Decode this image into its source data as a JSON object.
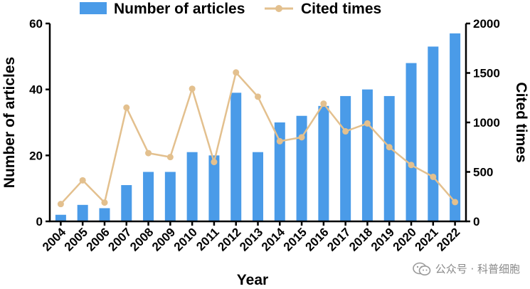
{
  "chart_data": {
    "type": "bar",
    "xlabel": "Year",
    "ylabel": "Number of articles",
    "y2label": "Cited times",
    "ylim": [
      0,
      60
    ],
    "y2lim": [
      0,
      2000
    ],
    "yticks": [
      "0",
      "20",
      "40",
      "60"
    ],
    "y2ticks": [
      "0",
      "500",
      "1000",
      "1500",
      "2000"
    ],
    "legend_placement": "top",
    "categories": [
      "2004",
      "2005",
      "2006",
      "2007",
      "2008",
      "2009",
      "2010",
      "2011",
      "2012",
      "2013",
      "2014",
      "2015",
      "2016",
      "2017",
      "2018",
      "2019",
      "2020",
      "2021",
      "2022"
    ],
    "series": [
      {
        "name": "Number of articles",
        "type": "bar",
        "axis": "left",
        "color": "#4a9be8",
        "values": [
          2,
          5,
          4,
          11,
          15,
          15,
          21,
          20,
          39,
          21,
          30,
          32,
          35,
          38,
          40,
          38,
          48,
          53,
          57
        ]
      },
      {
        "name": "Cited times",
        "type": "line",
        "axis": "right",
        "color": "#e3c08e",
        "values": [
          175,
          415,
          190,
          1150,
          690,
          650,
          1340,
          600,
          1505,
          1260,
          810,
          850,
          1190,
          910,
          990,
          750,
          570,
          450,
          195
        ]
      }
    ]
  },
  "watermark": "公众号 · 科普细胞"
}
